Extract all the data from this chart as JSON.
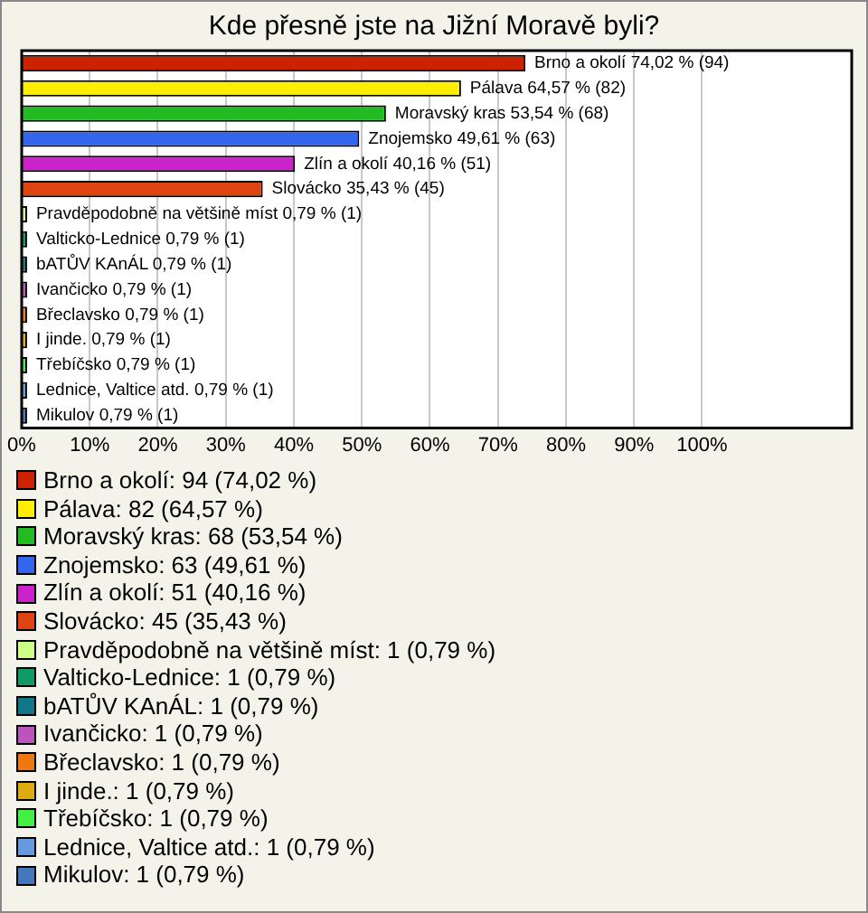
{
  "chart_data": {
    "type": "bar",
    "orientation": "horizontal",
    "title": "Kde přesně jste na Jižní Moravě byli?",
    "categories": [
      "Brno a okolí",
      "Pálava",
      "Moravský kras",
      "Znojemsko",
      "Zlín a okolí",
      "Slovácko",
      "Pravděpodobně na většině míst",
      "Valticko-Lednice",
      "bATŮV KAnÁL",
      "Ivančicko",
      "Břeclavsko",
      "I jinde.",
      "Třebíčsko",
      "Lednice, Valtice atd.",
      "Mikulov"
    ],
    "values": [
      74.02,
      64.57,
      53.54,
      49.61,
      40.16,
      35.43,
      0.79,
      0.79,
      0.79,
      0.79,
      0.79,
      0.79,
      0.79,
      0.79,
      0.79
    ],
    "colors": [
      "#cc2200",
      "#ffee00",
      "#22bb22",
      "#3366ee",
      "#cc22cc",
      "#dd4411",
      "#ccff88",
      "#119966",
      "#117788",
      "#bb55bb",
      "#ee7711",
      "#ddaa11",
      "#44ee44",
      "#6699dd",
      "#4477bb"
    ],
    "value_labels": [
      "74,02 % (94)",
      "64,57 % (82)",
      "53,54 % (68)",
      "49,61 % (63)",
      "40,16 % (51)",
      "35,43 % (45)",
      "0,79 % (1)",
      "0,79 % (1)",
      "0,79 % (1)",
      "0,79 % (1)",
      "0,79 % (1)",
      "0,79 % (1)",
      "0,79 % (1)",
      "0,79 % (1)",
      "0,79 % (1)"
    ],
    "xlim": [
      0,
      122
    ],
    "xticks": [
      {
        "value": 0,
        "label": "0%"
      },
      {
        "value": 10,
        "label": "10%"
      },
      {
        "value": 20,
        "label": "20%"
      },
      {
        "value": 30,
        "label": "30%"
      },
      {
        "value": 40,
        "label": "40%"
      },
      {
        "value": 50,
        "label": "50%"
      },
      {
        "value": 60,
        "label": "60%"
      },
      {
        "value": 70,
        "label": "70%"
      },
      {
        "value": 80,
        "label": "80%"
      },
      {
        "value": 90,
        "label": "90%"
      },
      {
        "value": 100,
        "label": "100%"
      }
    ],
    "grid": "x",
    "annotations": [
      "Brno a okolí: 94 (74,02 %)",
      "Pálava: 82 (64,57 %)",
      "Moravský kras: 68 (53,54 %)",
      "Znojemsko: 63 (49,61 %)",
      "Zlín a okolí: 51 (40,16 %)",
      "Slovácko: 45 (35,43 %)",
      "Pravděpodobně na většině míst: 1 (0,79 %)",
      "Valticko-Lednice: 1 (0,79 %)",
      "bATŮV KAnÁL: 1 (0,79 %)",
      "Ivančicko: 1 (0,79 %)",
      "Břeclavsko: 1 (0,79 %)",
      "I jinde.: 1 (0,79 %)",
      "Třebíčsko: 1 (0,79 %)",
      "Lednice, Valtice atd.: 1 (0,79 %)",
      "Mikulov: 1 (0,79 %)"
    ]
  }
}
